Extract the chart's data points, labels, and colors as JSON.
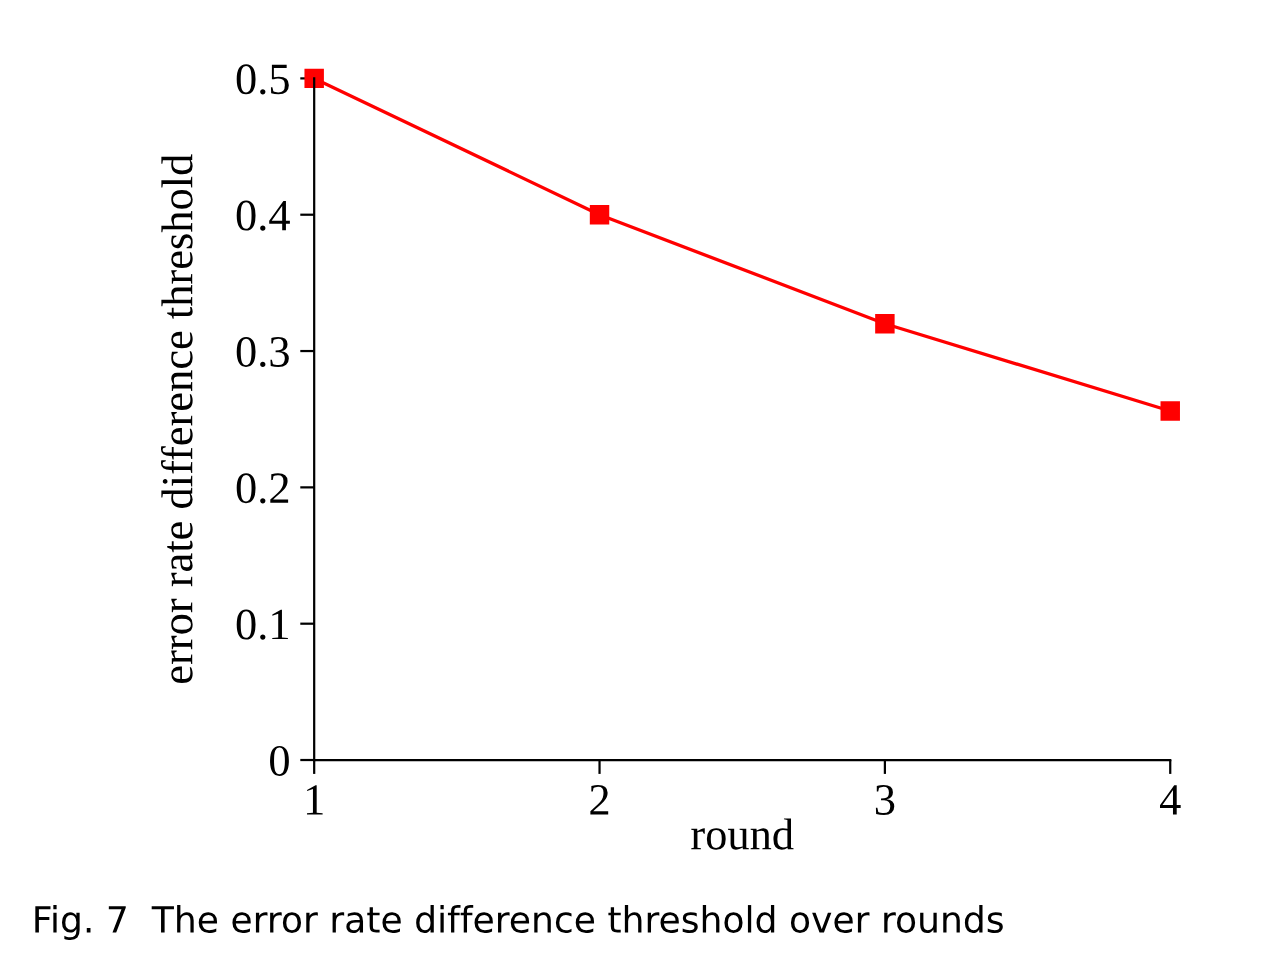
{
  "chart_data": {
    "type": "line",
    "xlabel": "round",
    "ylabel": "error rate difference threshold",
    "x": [
      1,
      2,
      3,
      4
    ],
    "series": [
      {
        "color": "#ff0000",
        "values": [
          0.5,
          0.4,
          0.32,
          0.256
        ]
      }
    ],
    "xlim": [
      1,
      4
    ],
    "ylim": [
      0,
      0.5
    ],
    "xticks": [
      1,
      2,
      3,
      4
    ],
    "yticks": [
      0,
      0.1,
      0.2,
      0.3,
      0.4,
      0.5
    ],
    "marker": "square",
    "line_style": "solid",
    "grid": false,
    "legend": false,
    "annotations": [
      "Fig. 7  The error rate difference threshold over rounds"
    ]
  }
}
